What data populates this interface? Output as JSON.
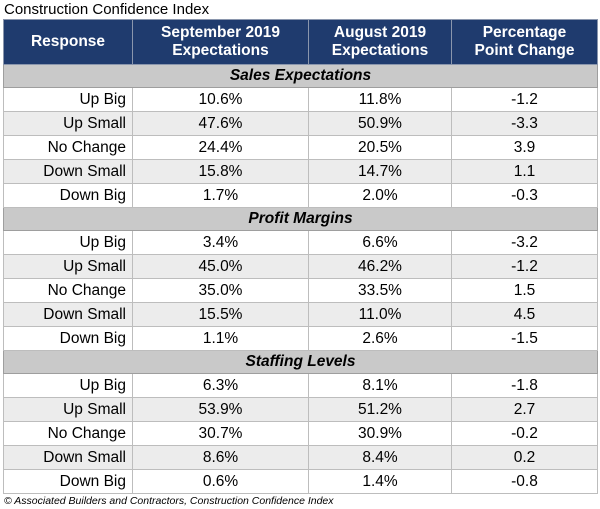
{
  "title": "Construction Confidence Index",
  "table": {
    "headers": {
      "response": "Response",
      "sep_line1": "September 2019",
      "sep_line2": "Expectations",
      "aug_line1": "August 2019",
      "aug_line2": "Expectations",
      "chg_line1": "Percentage",
      "chg_line2": "Point Change"
    },
    "sections": [
      {
        "name": "Sales Expectations",
        "rows": [
          {
            "response": "Up Big",
            "sep": "10.6%",
            "aug": "11.8%",
            "change": "-1.2"
          },
          {
            "response": "Up Small",
            "sep": "47.6%",
            "aug": "50.9%",
            "change": "-3.3"
          },
          {
            "response": "No Change",
            "sep": "24.4%",
            "aug": "20.5%",
            "change": "3.9"
          },
          {
            "response": "Down Small",
            "sep": "15.8%",
            "aug": "14.7%",
            "change": "1.1"
          },
          {
            "response": "Down Big",
            "sep": "1.7%",
            "aug": "2.0%",
            "change": "-0.3"
          }
        ]
      },
      {
        "name": "Profit Margins",
        "rows": [
          {
            "response": "Up Big",
            "sep": "3.4%",
            "aug": "6.6%",
            "change": "-3.2"
          },
          {
            "response": "Up Small",
            "sep": "45.0%",
            "aug": "46.2%",
            "change": "-1.2"
          },
          {
            "response": "No Change",
            "sep": "35.0%",
            "aug": "33.5%",
            "change": "1.5"
          },
          {
            "response": "Down Small",
            "sep": "15.5%",
            "aug": "11.0%",
            "change": "4.5"
          },
          {
            "response": "Down Big",
            "sep": "1.1%",
            "aug": "2.6%",
            "change": "-1.5"
          }
        ]
      },
      {
        "name": "Staffing Levels",
        "rows": [
          {
            "response": "Up Big",
            "sep": "6.3%",
            "aug": "8.1%",
            "change": "-1.8"
          },
          {
            "response": "Up Small",
            "sep": "53.9%",
            "aug": "51.2%",
            "change": "2.7"
          },
          {
            "response": "No Change",
            "sep": "30.7%",
            "aug": "30.9%",
            "change": "-0.2"
          },
          {
            "response": "Down Small",
            "sep": "8.6%",
            "aug": "8.4%",
            "change": "0.2"
          },
          {
            "response": "Down Big",
            "sep": "0.6%",
            "aug": "1.4%",
            "change": "-0.8"
          }
        ]
      }
    ]
  },
  "source": "© Associated Builders and Contractors, Construction Confidence Index",
  "colors": {
    "header_bg": "#1f3b6e",
    "section_bg": "#c9c9c9",
    "stripe_bg": "#ececec"
  }
}
